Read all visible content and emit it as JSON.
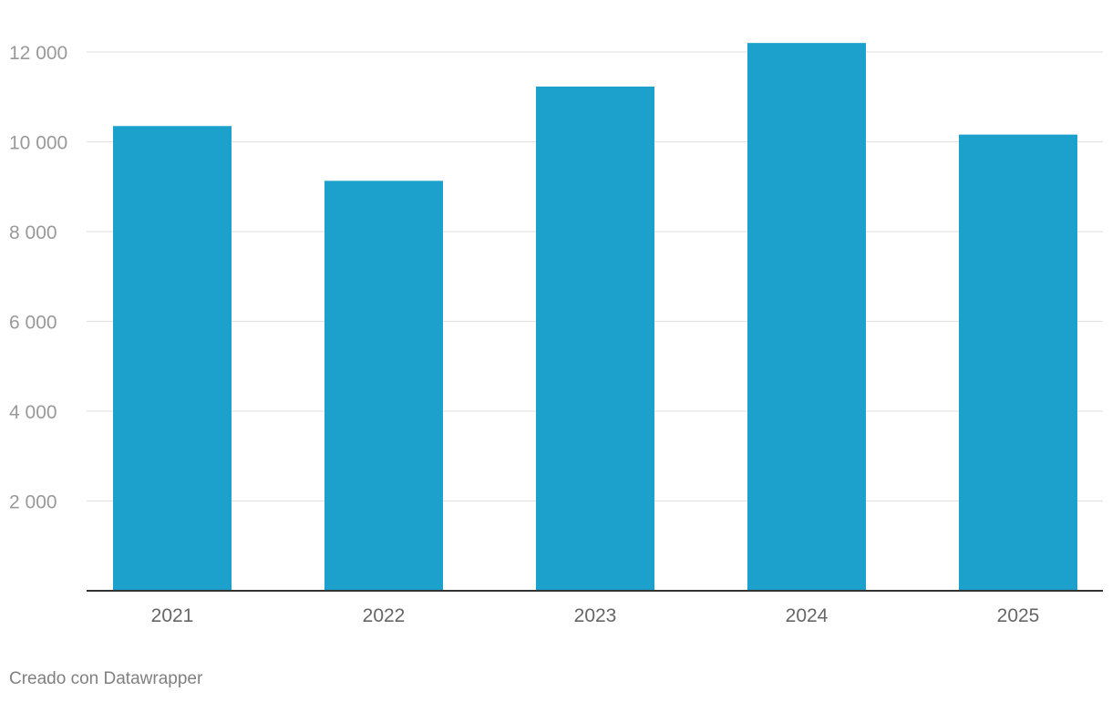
{
  "chart_data": {
    "type": "bar",
    "title": "",
    "xlabel": "",
    "ylabel": "",
    "categories": [
      "2021",
      "2022",
      "2023",
      "2024",
      "2025"
    ],
    "values": [
      10350,
      9130,
      11230,
      12200,
      10160
    ],
    "ylim": [
      0,
      12500
    ],
    "y_ticks": [
      2000,
      4000,
      6000,
      8000,
      10000,
      12000
    ],
    "y_tick_labels": [
      "2 000",
      "4 000",
      "6 000",
      "8 000",
      "10 000",
      "12 000"
    ],
    "grid": true,
    "legend": "none",
    "colors": {
      "bar": "#1ba1cc",
      "gridline": "#e3e3e3",
      "baseline": "#333333",
      "y_tick_text": "#999999",
      "x_tick_text": "#666666"
    }
  },
  "footer": {
    "credit": "Creado con Datawrapper"
  }
}
